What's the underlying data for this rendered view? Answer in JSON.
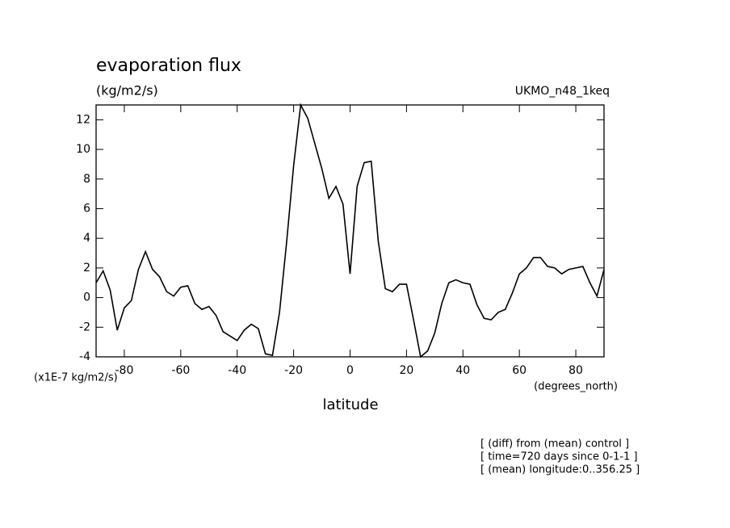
{
  "chart_data": {
    "type": "line",
    "title": "evaporation flux",
    "units": "(kg/m2/s)",
    "dataset": "UKMO_n48_1keq",
    "x_label": "latitude",
    "x_units": "(degrees_north)",
    "y_scale_label": "(x1E-7 kg/m2/s)",
    "notes": [
      "[ (diff) from (mean) control ]",
      "[ time=720 days since 0-1-1 ]",
      "[ (mean) longitude:0..356.25 ]"
    ],
    "x": [
      -90,
      -87.5,
      -85,
      -82.5,
      -80,
      -77.5,
      -75,
      -72.5,
      -70,
      -67.5,
      -65,
      -62.5,
      -60,
      -57.5,
      -55,
      -52.5,
      -50,
      -47.5,
      -45,
      -42.5,
      -40,
      -37.5,
      -35,
      -32.5,
      -30,
      -27.5,
      -25,
      -22.5,
      -20,
      -17.5,
      -15,
      -12.5,
      -10,
      -7.5,
      -5,
      -2.5,
      0,
      2.5,
      5,
      7.5,
      10,
      12.5,
      15,
      17.5,
      20,
      22.5,
      25,
      27.5,
      30,
      32.5,
      35,
      37.5,
      40,
      42.5,
      45,
      47.5,
      50,
      52.5,
      55,
      57.5,
      60,
      62.5,
      65,
      67.5,
      70,
      72.5,
      75,
      77.5,
      80,
      82.5,
      85,
      87.5,
      90
    ],
    "series": [
      {
        "name": "evaporation flux",
        "color": "#000000",
        "values": [
          1.0,
          1.8,
          0.5,
          -2.2,
          -0.7,
          -0.2,
          1.9,
          3.1,
          1.9,
          1.4,
          0.4,
          0.1,
          0.7,
          0.8,
          -0.4,
          -0.8,
          -0.6,
          -1.2,
          -2.3,
          -2.6,
          -2.9,
          -2.2,
          -1.8,
          -2.1,
          -3.8,
          -3.9,
          -1.0,
          3.7,
          8.9,
          13.0,
          12.1,
          10.4,
          8.7,
          6.7,
          7.5,
          6.3,
          1.6,
          7.5,
          9.1,
          9.2,
          3.8,
          0.6,
          0.4,
          0.9,
          0.9,
          -1.5,
          -4.0,
          -3.6,
          -2.4,
          -0.4,
          1.0,
          1.2,
          1.0,
          0.9,
          -0.5,
          -1.4,
          -1.5,
          -1.0,
          -0.8,
          0.3,
          1.6,
          2.0,
          2.7,
          2.7,
          2.1,
          2.0,
          1.6,
          1.9,
          2.0,
          2.1,
          1.0,
          0.1,
          1.9
        ]
      }
    ],
    "xlim": [
      -90,
      90
    ],
    "ylim": [
      -4,
      13
    ],
    "xticks": [
      -80,
      -60,
      -40,
      -20,
      0,
      20,
      40,
      60,
      80
    ],
    "yticks": [
      -4,
      -2,
      0,
      2,
      4,
      6,
      8,
      10,
      12
    ]
  }
}
